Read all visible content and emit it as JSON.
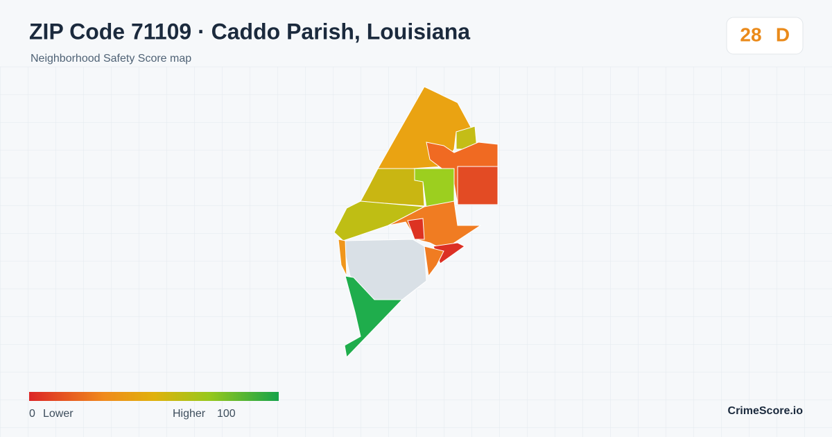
{
  "header": {
    "title": "ZIP Code 71109 · Caddo Parish, Louisiana",
    "subtitle": "Neighborhood Safety Score map"
  },
  "score": {
    "value": 28,
    "grade": "D"
  },
  "legend": {
    "min": 0,
    "min_label": "Lower",
    "max_label": "Higher",
    "max": 100
  },
  "footer": {
    "brand": "CrimeScore.io"
  }
}
